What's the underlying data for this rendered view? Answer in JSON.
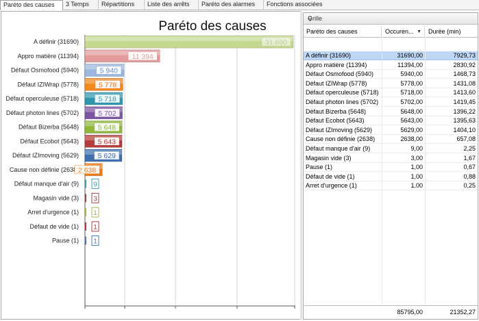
{
  "tabs": [
    {
      "label": "Paréto des causes",
      "active": true
    },
    {
      "label": "3 Temps",
      "active": false
    },
    {
      "label": "Répartitions",
      "active": false
    },
    {
      "label": "Liste des arrêts",
      "active": false
    },
    {
      "label": "Paréto des alarmes",
      "active": false
    },
    {
      "label": "Fonctions associées",
      "active": false
    }
  ],
  "chart_data": {
    "type": "bar",
    "orientation": "horizontal",
    "title": "Paréto des causes",
    "categories": [
      "A définir (31690)",
      "Appro matière (11394)",
      "Défaut Osmofood (5940)",
      "Défaut IZIWrap (5778)",
      "Défaut operculeuse (5718)",
      "Défaut photon lines (5702)",
      "Défaut Bizerba (5648)",
      "Défaut Ecobot (5643)",
      "Défaut IZImoving (5629)",
      "Cause non définie (2638)",
      "Défaut manque d'air (9)",
      "Magasin vide (3)",
      "Arret d'urgence (1)",
      "Défaut de vide (1)",
      "Pause (1)"
    ],
    "values": [
      31690,
      11394,
      5940,
      5778,
      5718,
      5702,
      5648,
      5643,
      5629,
      2638,
      9,
      3,
      1,
      1,
      1
    ],
    "data_labels": [
      "31 690",
      "11 394",
      "5 940",
      "5 778",
      "5 718",
      "5 702",
      "5 648",
      "5 643",
      "5 629",
      "2 638",
      "9",
      "3",
      "1",
      "1",
      "1"
    ],
    "colors": [
      "#c5d88f",
      "#e39b9b",
      "#9db8de",
      "#f08a1e",
      "#2f97ad",
      "#7b57a3",
      "#8fb638",
      "#b43c3a",
      "#3f6fae",
      "#ee7a16",
      "#3f9bb0",
      "#9a4a4a",
      "#a4b84c",
      "#b43c3a",
      "#4a78b4"
    ],
    "label_text_colors": [
      "#c4cfa4",
      "#d9a8a8",
      "#6b90c4",
      "#e8741a",
      "#2f97ad",
      "#7b57a3",
      "#8fb638",
      "#b43c3a",
      "#3f6fae",
      "#ee7a16",
      "#3f9bb0",
      "#9a4a4a",
      "#a4b84c",
      "#b43c3a",
      "#4a78b4"
    ],
    "xticks": [
      "0",
      "2000",
      "6000",
      "10000",
      "32000"
    ],
    "xlim": [
      0,
      32000
    ],
    "grid": true
  },
  "grid": {
    "title": "Grille",
    "pin_icon": "pin-icon",
    "columns": [
      "Paréto des causes",
      "Occuren...",
      "Durée (min)"
    ],
    "sort_icon": "sort-down-icon",
    "rows": [
      [
        "A définir (31690)",
        "31690,00",
        "7929,73"
      ],
      [
        "Appro matière (11394)",
        "11394,00",
        "2830,92"
      ],
      [
        "Défaut Osmofood (5940)",
        "5940,00",
        "1468,73"
      ],
      [
        "Défaut IZIWrap (5778)",
        "5778,00",
        "1431,08"
      ],
      [
        "Défaut operculeuse (5718)",
        "5718,00",
        "1413,60"
      ],
      [
        "Défaut photon lines (5702)",
        "5702,00",
        "1419,45"
      ],
      [
        "Défaut Bizerba (5648)",
        "5648,00",
        "1396,22"
      ],
      [
        "Défaut Ecobot (5643)",
        "5643,00",
        "1395,63"
      ],
      [
        "Défaut IZImoving (5629)",
        "5629,00",
        "1404,10"
      ],
      [
        "Cause non définie (2638)",
        "2638,00",
        "657,08"
      ],
      [
        "Défaut manque d'air (9)",
        "9,00",
        "2,25"
      ],
      [
        "Magasin vide (3)",
        "3,00",
        "1,67"
      ],
      [
        "Pause (1)",
        "1,00",
        "0,67"
      ],
      [
        "Défaut de vide (1)",
        "1,00",
        "0,88"
      ],
      [
        "Arret d'urgence (1)",
        "1,00",
        "0,25"
      ]
    ],
    "selected_row": 0,
    "totals": {
      "occurrences": "85795,00",
      "duree": "21352,27"
    }
  }
}
